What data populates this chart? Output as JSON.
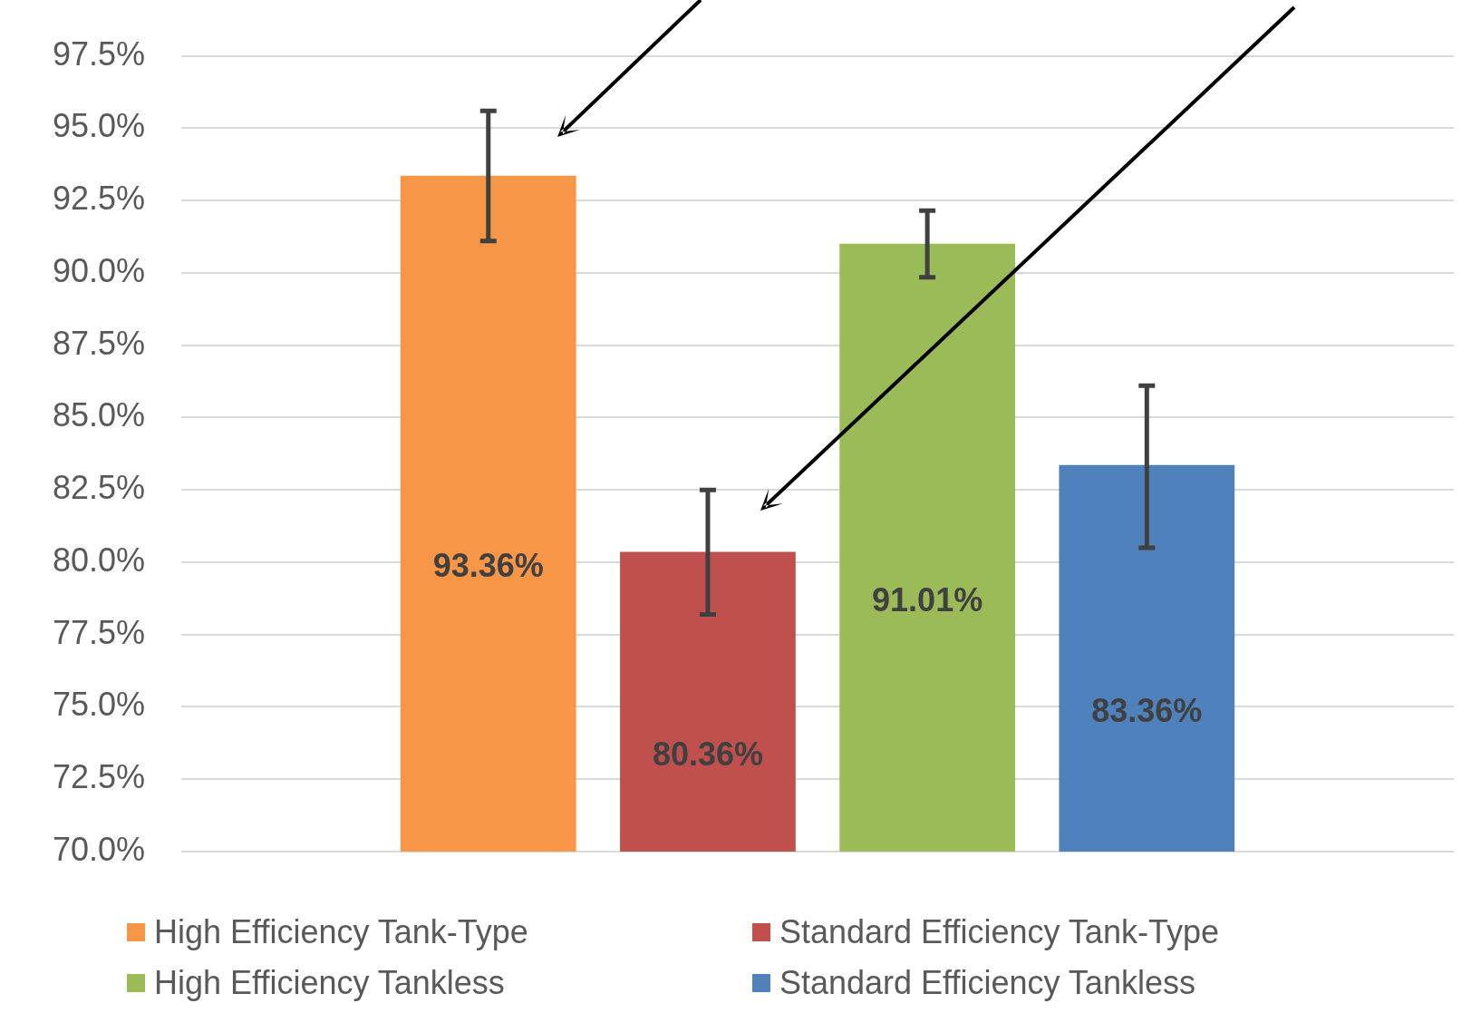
{
  "chart_data": {
    "type": "bar",
    "categories": [
      null
    ],
    "series": [
      {
        "name": "High Efficiency Tank-Type",
        "color": "#f79646",
        "values": [
          93.36
        ],
        "errors": [
          [
            91.1,
            95.6
          ]
        ],
        "value_labels": [
          "93.36%"
        ]
      },
      {
        "name": "Standard Efficiency Tank-Type",
        "color": "#c0504d",
        "values": [
          80.36
        ],
        "errors": [
          [
            78.2,
            82.5
          ]
        ],
        "value_labels": [
          "80.36%"
        ]
      },
      {
        "name": "High Efficiency Tankless",
        "color": "#9bbb59",
        "values": [
          91.01
        ],
        "errors": [
          [
            89.85,
            92.15
          ]
        ],
        "value_labels": [
          "91.01%"
        ]
      },
      {
        "name": "Standard Efficiency Tankless",
        "color": "#4f81bd",
        "values": [
          83.36
        ],
        "errors": [
          [
            80.5,
            86.1
          ]
        ],
        "value_labels": [
          "83.36%"
        ]
      }
    ],
    "ylim": [
      70,
      97.5
    ],
    "yticks": [
      {
        "value": 70,
        "label": "70.0%"
      },
      {
        "value": 72.5,
        "label": "72.5%"
      },
      {
        "value": 75,
        "label": "75.0%"
      },
      {
        "value": 77.5,
        "label": "77.5%"
      },
      {
        "value": 80,
        "label": "80.0%"
      },
      {
        "value": 82.5,
        "label": "82.5%"
      },
      {
        "value": 85,
        "label": "85.0%"
      },
      {
        "value": 87.5,
        "label": "87.5%"
      },
      {
        "value": 90,
        "label": "90.0%"
      },
      {
        "value": 92.5,
        "label": "92.5%"
      },
      {
        "value": 95,
        "label": "95.0%"
      },
      {
        "value": 97.5,
        "label": "97.5%"
      }
    ],
    "grid": "y",
    "legend": "bottom"
  }
}
